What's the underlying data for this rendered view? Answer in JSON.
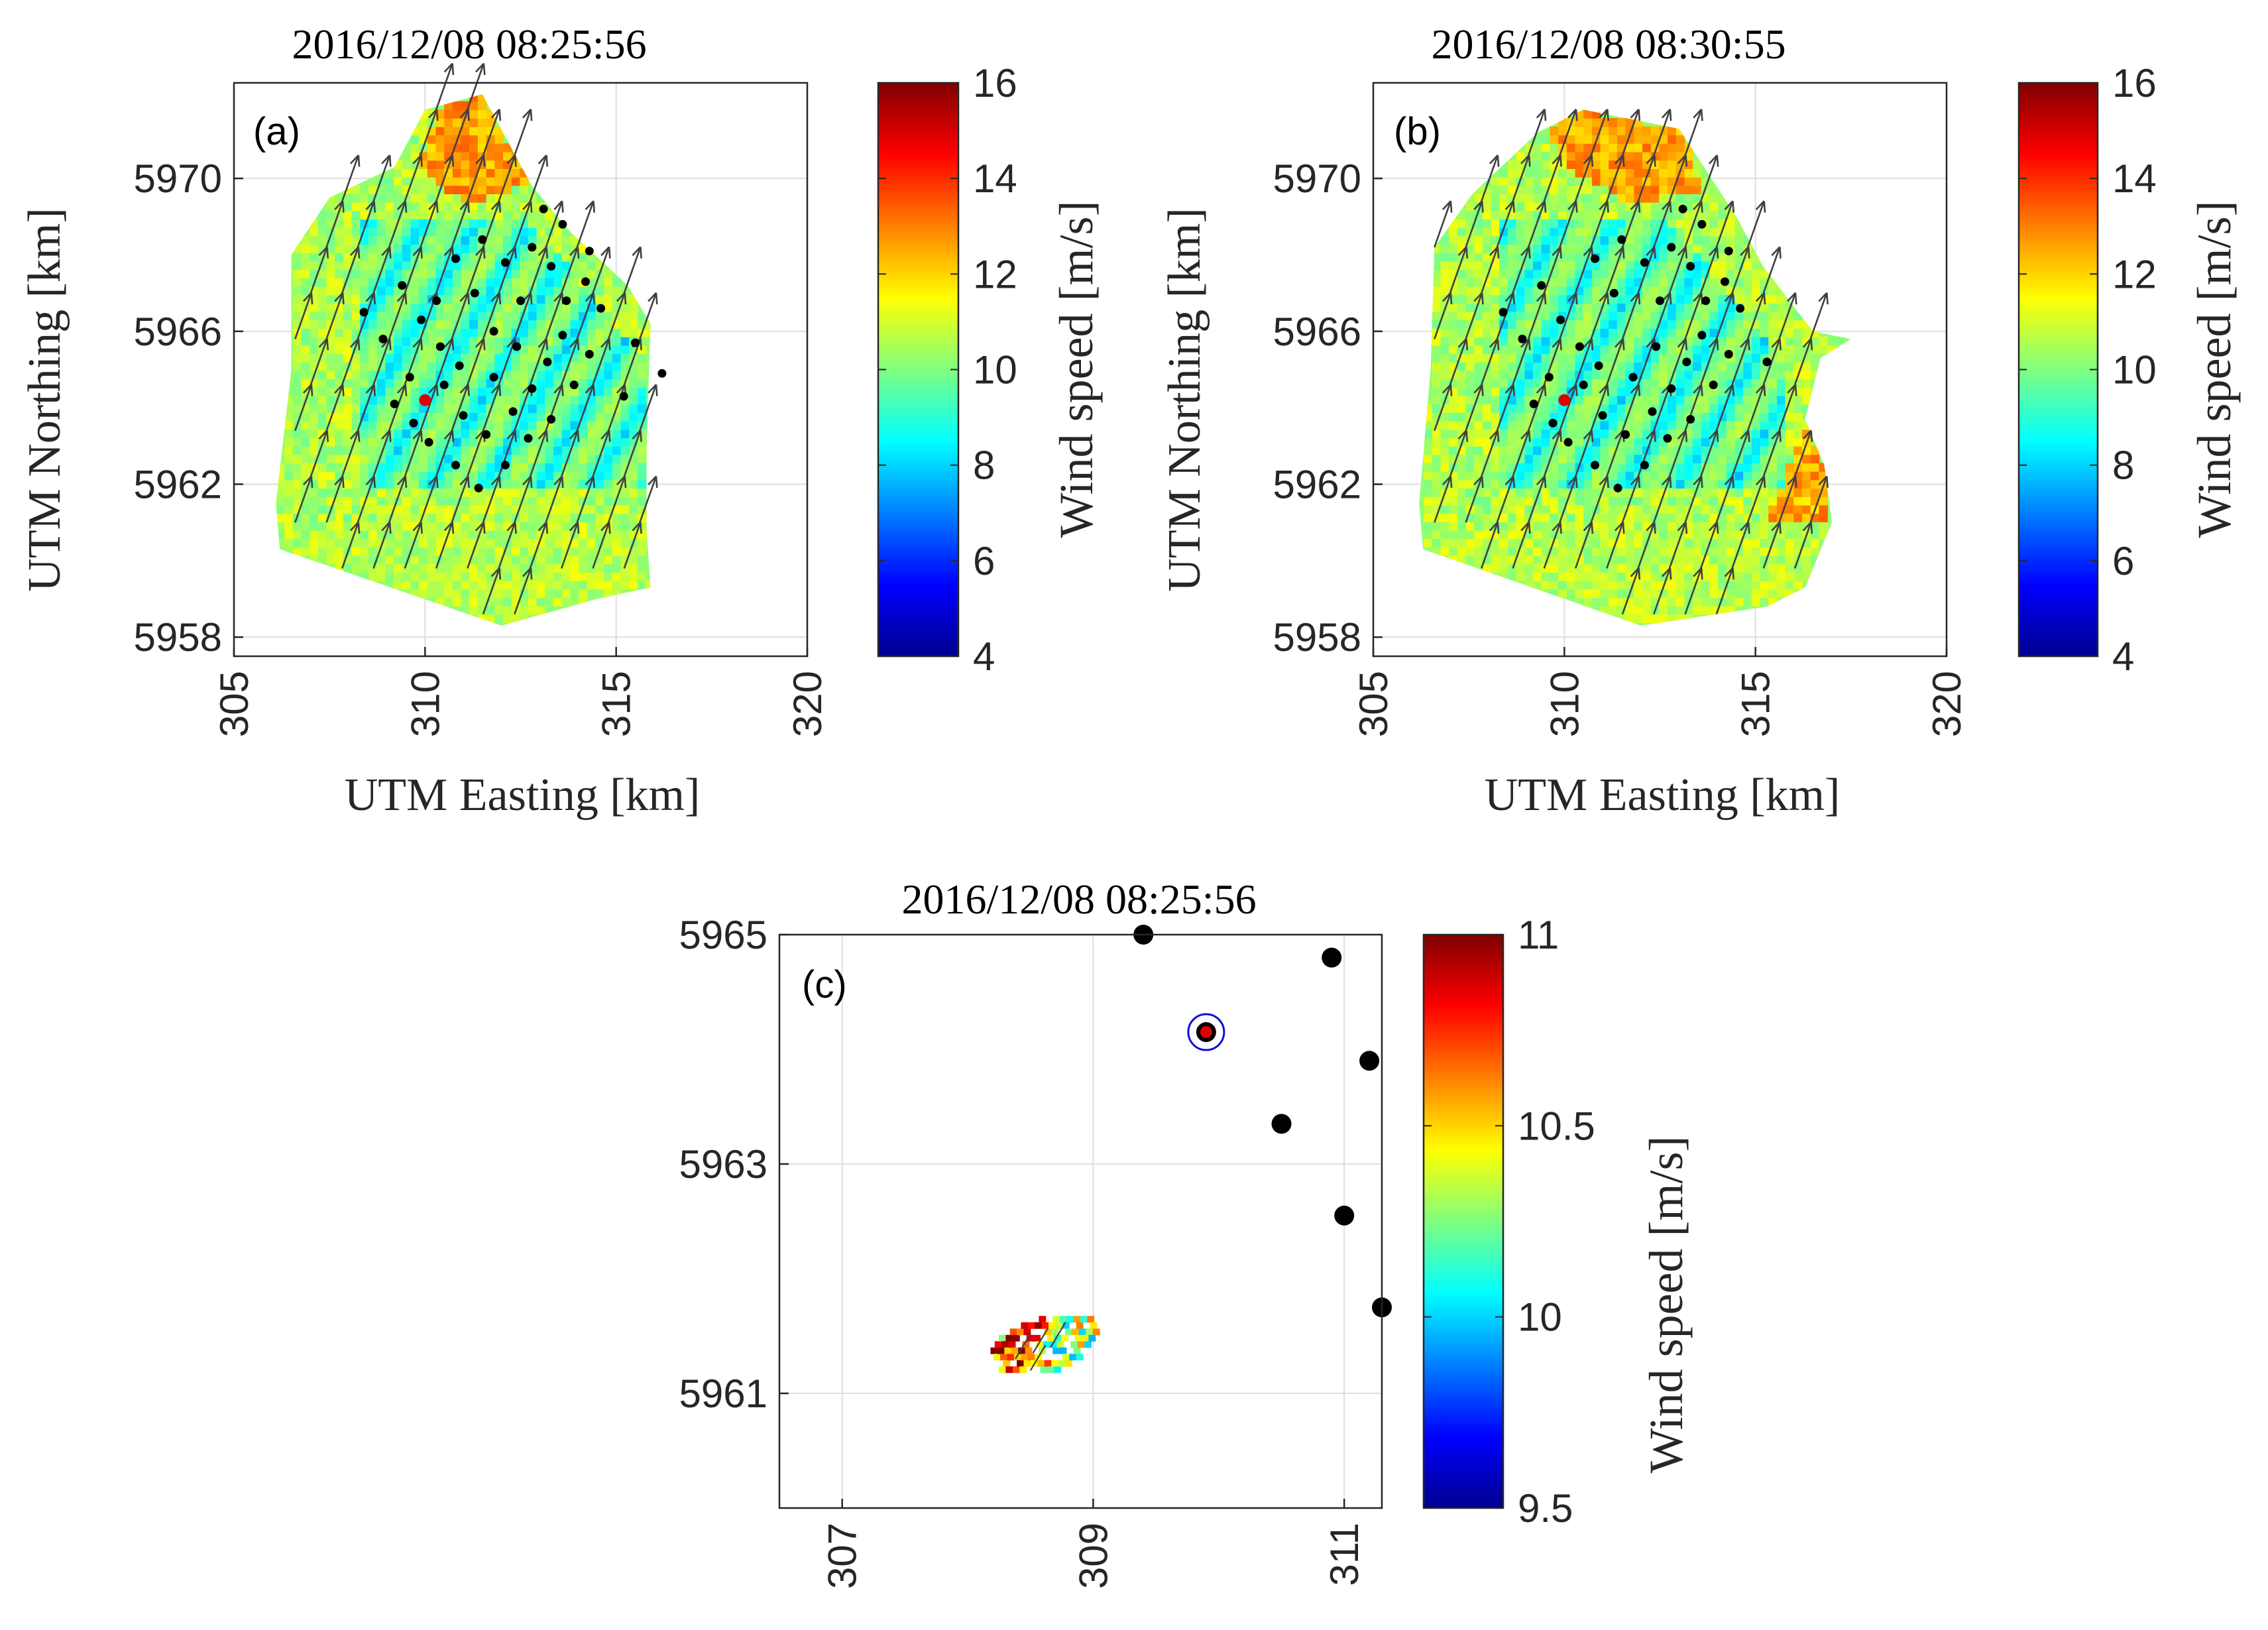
{
  "figure": {
    "colors": {
      "arrow": "#404040",
      "turbine": "#000000",
      "marker": "#e00000",
      "ring": "#1010d0"
    }
  },
  "chart_data": [
    {
      "type": "heatmap",
      "panel_label": "(a)",
      "title": "2016/12/08 08:25:56",
      "xlabel": "UTM Easting [km]",
      "ylabel": "UTM Northing [km]",
      "xlim": [
        305,
        320
      ],
      "ylim": [
        5957.5,
        5972.5
      ],
      "xticks": [
        "305",
        "310",
        "315",
        "320"
      ],
      "yticks": [
        "5958",
        "5962",
        "5966",
        "5970"
      ],
      "colorbar": {
        "label": "Wind speed [m/s]",
        "range": [
          4,
          16
        ],
        "ticks": [
          "4",
          "6",
          "8",
          "10",
          "12",
          "14",
          "16"
        ]
      },
      "scan_polygon": [
        [
          310,
          5971.8
        ],
        [
          311.5,
          5972.2
        ],
        [
          312.8,
          5969.8
        ],
        [
          313.8,
          5968.6
        ],
        [
          315.3,
          5967.2
        ],
        [
          315.9,
          5966.2
        ],
        [
          315.8,
          5963
        ],
        [
          315.8,
          5960.8
        ],
        [
          315.9,
          5959.3
        ],
        [
          314.5,
          5959
        ],
        [
          312,
          5958.3
        ],
        [
          306.2,
          5960.3
        ],
        [
          306.1,
          5961.5
        ],
        [
          306.5,
          5965
        ],
        [
          306.5,
          5968
        ],
        [
          307.5,
          5969.5
        ],
        [
          309.2,
          5970.3
        ]
      ],
      "high_wind_region": [
        [
          310.2,
          5971.8
        ],
        [
          311.5,
          5972.2
        ],
        [
          312.8,
          5969.8
        ],
        [
          311,
          5969.2
        ],
        [
          309.7,
          5970.2
        ]
      ],
      "turbines": [
        [
          308.4,
          5966.5
        ],
        [
          308.9,
          5965.8
        ],
        [
          309.4,
          5967.2
        ],
        [
          309.9,
          5966.3
        ],
        [
          310.4,
          5965.6
        ],
        [
          310.8,
          5967.9
        ],
        [
          311.3,
          5967
        ],
        [
          311.5,
          5968.4
        ],
        [
          312.1,
          5967.8
        ],
        [
          312.5,
          5966.8
        ],
        [
          312.8,
          5968.2
        ],
        [
          313.3,
          5967.7
        ],
        [
          313.7,
          5966.8
        ],
        [
          314.2,
          5967.3
        ],
        [
          314.6,
          5966.6
        ],
        [
          314.3,
          5965.4
        ],
        [
          313.9,
          5964.6
        ],
        [
          313.3,
          5963.7
        ],
        [
          312.7,
          5963.2
        ],
        [
          312.1,
          5962.5
        ],
        [
          311.4,
          5961.9
        ],
        [
          310.8,
          5962.5
        ],
        [
          310.1,
          5963.1
        ],
        [
          309.7,
          5963.6
        ],
        [
          309.2,
          5964.1
        ],
        [
          310.5,
          5964.6
        ],
        [
          311,
          5963.8
        ],
        [
          311.6,
          5963.3
        ],
        [
          312.3,
          5963.9
        ],
        [
          312.8,
          5964.5
        ],
        [
          313.2,
          5965.2
        ],
        [
          313.6,
          5965.9
        ],
        [
          310.9,
          5965.1
        ],
        [
          311.8,
          5964.8
        ],
        [
          312.4,
          5965.6
        ],
        [
          309.6,
          5964.8
        ],
        [
          313.1,
          5969.2
        ],
        [
          313.6,
          5968.8
        ],
        [
          314.3,
          5968.1
        ],
        [
          315.5,
          5965.7
        ],
        [
          316.2,
          5964.9
        ],
        [
          315.2,
          5964.3
        ],
        [
          310.3,
          5966.8
        ],
        [
          311.8,
          5966
        ]
      ],
      "measurement_point": [
        310,
        5964.2
      ],
      "arrow_direction_deg": 30
    },
    {
      "type": "heatmap",
      "panel_label": "(b)",
      "title": "2016/12/08 08:30:55",
      "xlabel": "UTM Easting [km]",
      "ylabel": "UTM Northing [km]",
      "xlim": [
        305,
        320
      ],
      "ylim": [
        5957.5,
        5972.5
      ],
      "xticks": [
        "305",
        "310",
        "315",
        "320"
      ],
      "yticks": [
        "5958",
        "5962",
        "5966",
        "5970"
      ],
      "colorbar": {
        "label": "Wind speed [m/s]",
        "range": [
          4,
          16
        ],
        "ticks": [
          "4",
          "6",
          "8",
          "10",
          "12",
          "14",
          "16"
        ]
      },
      "scan_polygon": [
        [
          309.3,
          5971.2
        ],
        [
          310.5,
          5971.8
        ],
        [
          313,
          5971.3
        ],
        [
          314.5,
          5969
        ],
        [
          315.2,
          5967.7
        ],
        [
          316.5,
          5966
        ],
        [
          317.5,
          5965.8
        ],
        [
          316.7,
          5965.3
        ],
        [
          316.3,
          5963.7
        ],
        [
          316.8,
          5962.5
        ],
        [
          317,
          5961
        ],
        [
          316.3,
          5959.3
        ],
        [
          315.3,
          5958.8
        ],
        [
          312,
          5958.3
        ],
        [
          306.3,
          5960.3
        ],
        [
          306.2,
          5961.5
        ],
        [
          306.5,
          5965
        ],
        [
          306.6,
          5968.2
        ],
        [
          307.6,
          5969.6
        ]
      ],
      "high_wind_region": [
        [
          309.5,
          5971.3
        ],
        [
          310.6,
          5971.8
        ],
        [
          313,
          5971.3
        ],
        [
          313.5,
          5969.5
        ],
        [
          311.5,
          5969.3
        ],
        [
          309.8,
          5970.3
        ]
      ],
      "high_wind_region_2": [
        [
          316.3,
          5963.6
        ],
        [
          316.8,
          5962.5
        ],
        [
          317,
          5961
        ],
        [
          316.3,
          5959.3
        ],
        [
          315.3,
          5958.9
        ],
        [
          315.2,
          5961
        ]
      ],
      "turbines": [
        [
          308.4,
          5966.5
        ],
        [
          308.9,
          5965.8
        ],
        [
          309.4,
          5967.2
        ],
        [
          309.9,
          5966.3
        ],
        [
          310.4,
          5965.6
        ],
        [
          310.8,
          5967.9
        ],
        [
          311.3,
          5967
        ],
        [
          311.5,
          5968.4
        ],
        [
          312.1,
          5967.8
        ],
        [
          312.5,
          5966.8
        ],
        [
          312.8,
          5968.2
        ],
        [
          313.3,
          5967.7
        ],
        [
          313.7,
          5966.8
        ],
        [
          314.2,
          5967.3
        ],
        [
          314.6,
          5966.6
        ],
        [
          314.3,
          5965.4
        ],
        [
          313.9,
          5964.6
        ],
        [
          313.3,
          5963.7
        ],
        [
          312.7,
          5963.2
        ],
        [
          312.1,
          5962.5
        ],
        [
          311.4,
          5961.9
        ],
        [
          310.8,
          5962.5
        ],
        [
          310.1,
          5963.1
        ],
        [
          309.7,
          5963.6
        ],
        [
          309.2,
          5964.1
        ],
        [
          310.5,
          5964.6
        ],
        [
          311,
          5963.8
        ],
        [
          311.6,
          5963.3
        ],
        [
          312.3,
          5963.9
        ],
        [
          312.8,
          5964.5
        ],
        [
          313.2,
          5965.2
        ],
        [
          313.6,
          5965.9
        ],
        [
          310.9,
          5965.1
        ],
        [
          311.8,
          5964.8
        ],
        [
          312.4,
          5965.6
        ],
        [
          309.6,
          5964.8
        ],
        [
          313.1,
          5969.2
        ],
        [
          313.6,
          5968.8
        ],
        [
          314.3,
          5968.1
        ],
        [
          315.3,
          5965.2
        ]
      ],
      "measurement_point": [
        310,
        5964.2
      ],
      "arrow_direction_deg": 30
    },
    {
      "type": "heatmap",
      "panel_label": "(c)",
      "title": "2016/12/08 08:25:56",
      "xlabel": "",
      "ylabel": "",
      "xlim": [
        306.5,
        311.3
      ],
      "ylim": [
        5960,
        5965
      ],
      "xticks": [
        "307",
        "309",
        "311"
      ],
      "yticks": [
        "5961",
        "5963",
        "5965"
      ],
      "colorbar": {
        "label": "Wind speed [m/s]",
        "range": [
          9.5,
          11
        ],
        "ticks": [
          "9.5",
          "10",
          "10.5",
          "11"
        ]
      },
      "patch_center": [
        308.6,
        5961.4
      ],
      "turbines": [
        [
          309.4,
          5965
        ],
        [
          310.9,
          5964.8
        ],
        [
          311.2,
          5963.9
        ],
        [
          310.5,
          5963.35
        ],
        [
          311,
          5962.55
        ],
        [
          311.3,
          5961.75
        ]
      ],
      "measurement_point": [
        309.9,
        5964.15
      ],
      "arrow_direction_deg": 30
    }
  ]
}
